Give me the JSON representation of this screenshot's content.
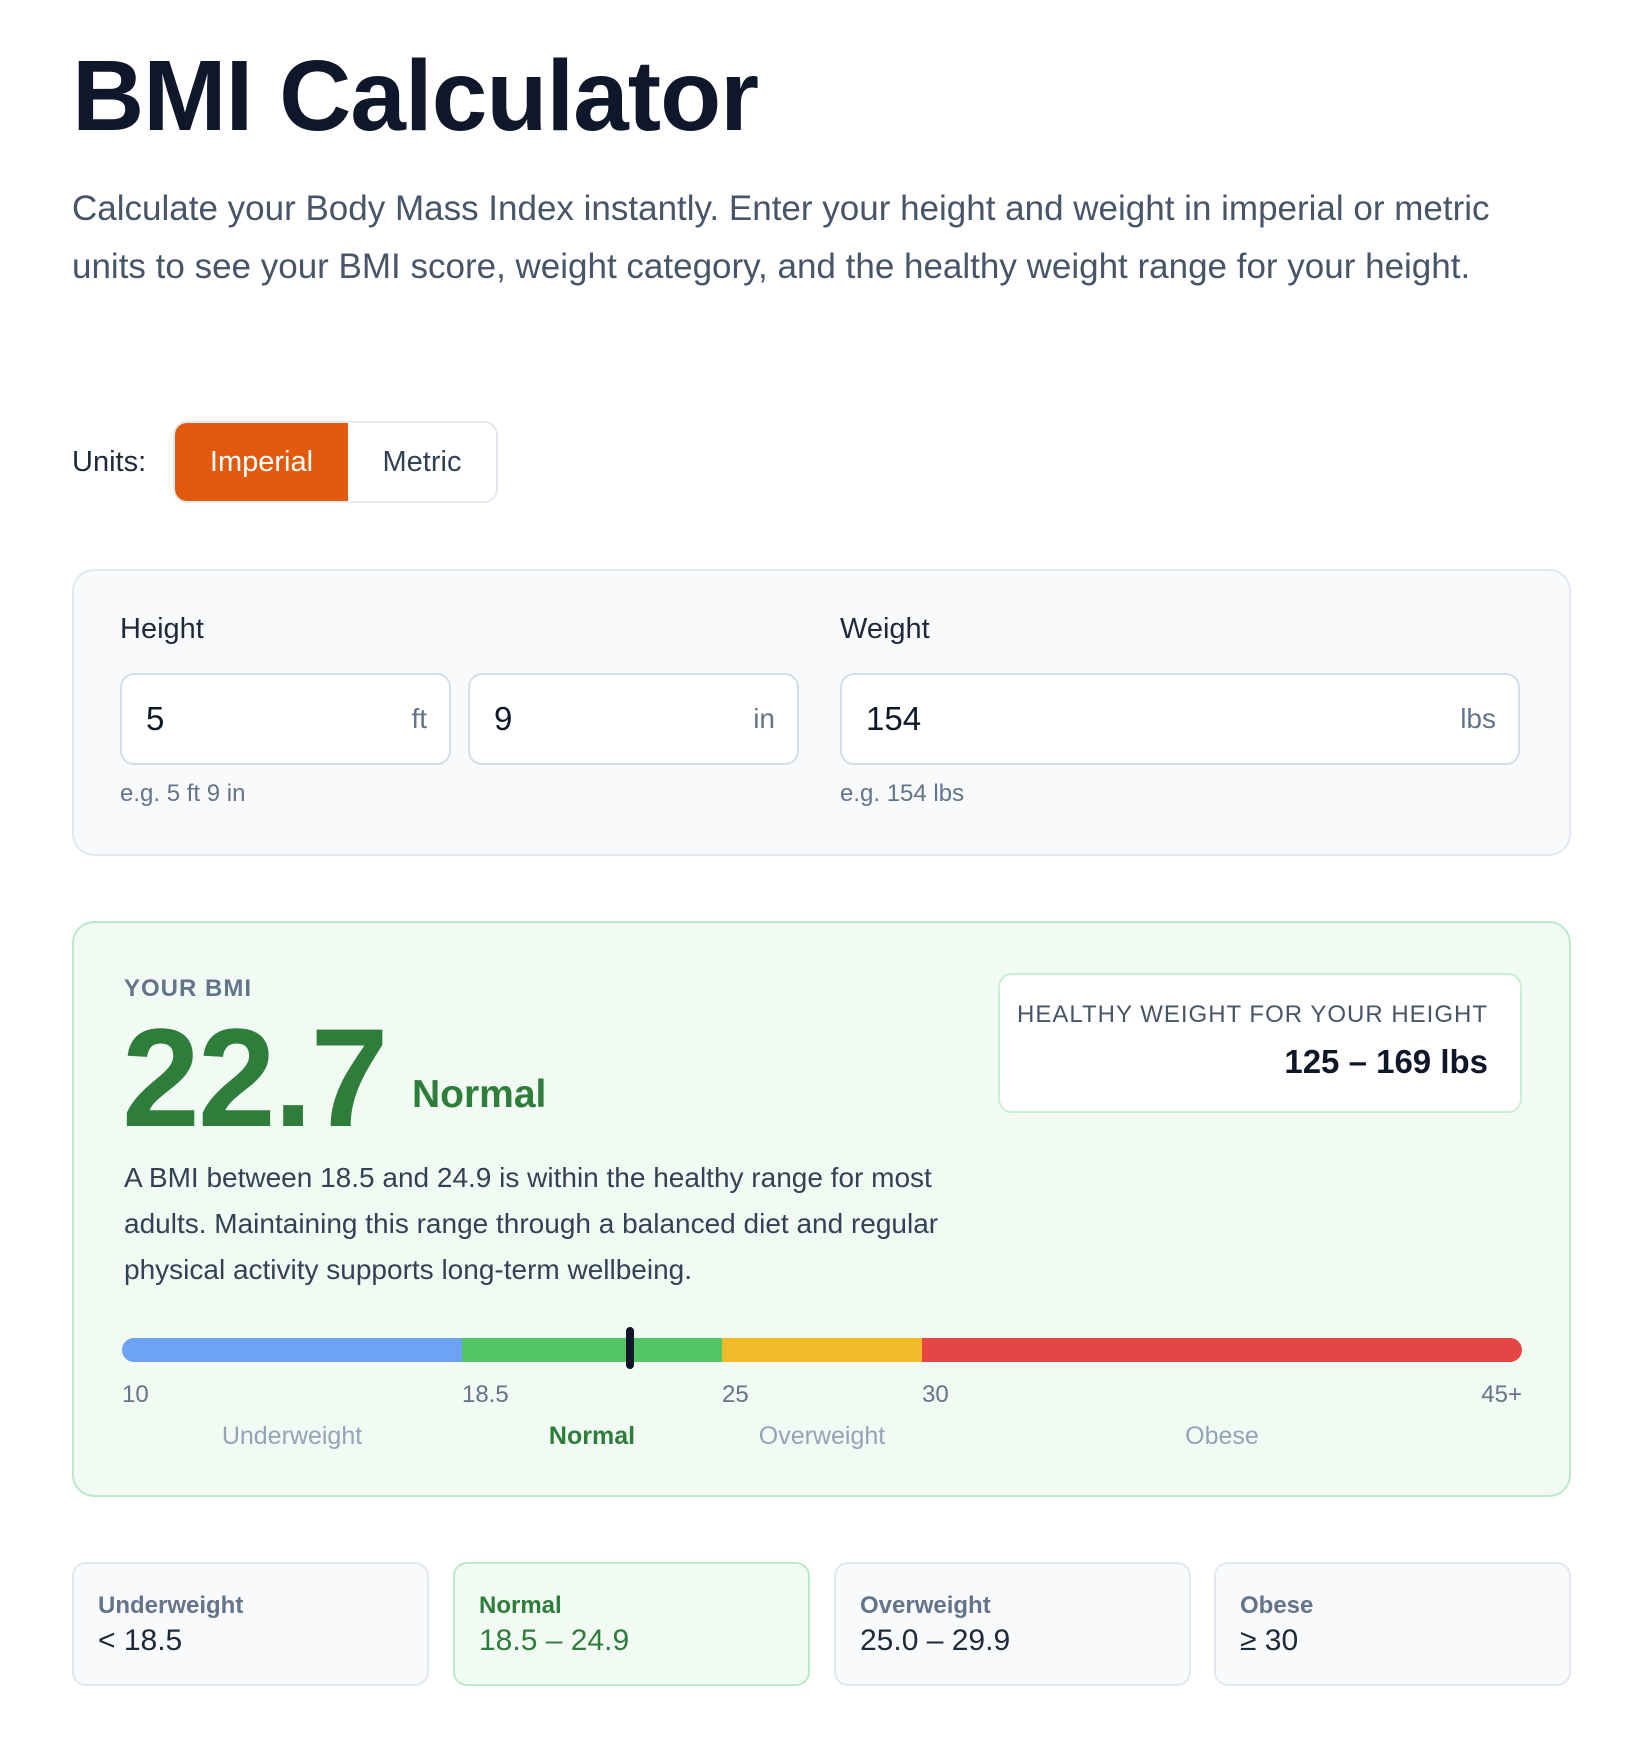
{
  "page": {
    "title": "BMI Calculator",
    "intro": "Calculate your Body Mass Index instantly. Enter your height and weight in imperial or metric units to see your BMI score, weight category, and the healthy weight range for your height."
  },
  "units": {
    "label": "Units:",
    "options": [
      "Imperial",
      "Metric"
    ],
    "selected": "Imperial",
    "accent_color": "#e25a0d"
  },
  "inputs": {
    "height": {
      "label": "Height",
      "feet_value": "5",
      "feet_unit": "ft",
      "inches_value": "9",
      "inches_unit": "in",
      "hint": "e.g. 5 ft 9 in"
    },
    "weight": {
      "label": "Weight",
      "value": "154",
      "unit": "lbs",
      "hint": "e.g. 154 lbs"
    }
  },
  "result": {
    "eyebrow": "YOUR BMI",
    "bmi": "22.7",
    "bmi_value": 22.7,
    "category": "Normal",
    "description": "A BMI between 18.5 and 24.9 is within the healthy range for most adults. Maintaining this range through a balanced diet and regular physical activity supports long-term wellbeing.",
    "healthy_weight_label": "HEALTHY WEIGHT FOR YOUR HEIGHT",
    "healthy_weight_value": "125 – 169 lbs",
    "result_color": "#2e7d3a"
  },
  "scale": {
    "min": 10,
    "max": 45,
    "boundaries": [
      10,
      18.5,
      25,
      30,
      45
    ],
    "tick_labels": [
      "10",
      "18.5",
      "25",
      "30",
      "45+"
    ],
    "zones": [
      {
        "name": "Underweight",
        "from": 10,
        "to": 18.5,
        "color": "#6ea2f5",
        "active": false
      },
      {
        "name": "Normal",
        "from": 18.5,
        "to": 25,
        "color": "#52c565",
        "active": true
      },
      {
        "name": "Overweight",
        "from": 25,
        "to": 30,
        "color": "#f2bb2a",
        "active": false
      },
      {
        "name": "Obese",
        "from": 30,
        "to": 45,
        "color": "#e64545",
        "active": false
      }
    ]
  },
  "categories": [
    {
      "name": "Underweight",
      "range": "< 18.5",
      "active": false
    },
    {
      "name": "Normal",
      "range": "18.5 – 24.9",
      "active": true
    },
    {
      "name": "Overweight",
      "range": "25.0 – 29.9",
      "active": false
    },
    {
      "name": "Obese",
      "range": "≥ 30",
      "active": false
    }
  ]
}
